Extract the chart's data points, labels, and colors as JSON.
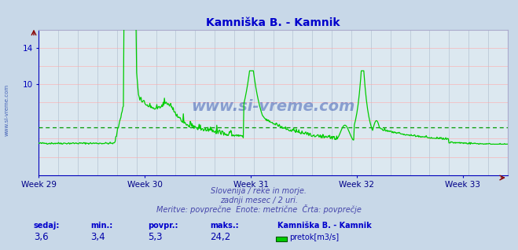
{
  "title": "Kamniška B. - Kamnik",
  "title_color": "#0000cc",
  "bg_color": "#c8d8e8",
  "plot_bg_color": "#dce8f0",
  "grid_color_v": "#aabbcc",
  "grid_color_h": "#ffaaaa",
  "line_color": "#00cc00",
  "avg_line_color": "#009900",
  "axis_color": "#0000bb",
  "xlabel_color": "#000088",
  "ylim": [
    0,
    16
  ],
  "yticks": [
    10,
    14
  ],
  "avg_value": 5.3,
  "week_labels": [
    "Week 29",
    "Week 30",
    "Week 31",
    "Week 32",
    "Week 33"
  ],
  "week_positions": [
    0,
    168,
    336,
    504,
    672
  ],
  "total_points": 744,
  "subtitle1": "Slovenija / reke in morje.",
  "subtitle2": "zadnji mesec / 2 uri.",
  "subtitle3": "Meritve: povprečne  Enote: metrične  Črta: povprečje",
  "subtitle_color": "#4444aa",
  "footer_label_color": "#0000cc",
  "footer_value_color": "#0000aa",
  "sedaj": "3,6",
  "min_val": "3,4",
  "povpr": "5,3",
  "maks": "24,2",
  "legend_label": "pretok[m3/s]",
  "legend_color": "#00cc00",
  "watermark": "www.si-vreme.com",
  "watermark_color": "#2244aa",
  "sidebar_text": "www.si-vreme.com"
}
